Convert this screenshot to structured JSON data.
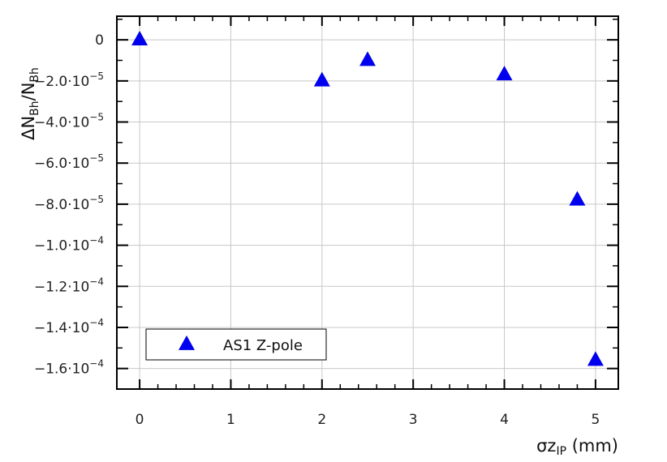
{
  "chart_data": {
    "type": "scatter",
    "xlabel": {
      "main": "σz",
      "sub": "IP",
      "suffix": " (mm)"
    },
    "ylabel": {
      "parts": [
        {
          "text": "ΔN",
          "sub": false
        },
        {
          "text": "Bh",
          "sub": true
        },
        {
          "text": "/N",
          "sub": false
        },
        {
          "text": "Bh",
          "sub": true
        }
      ]
    },
    "xlim": [
      -0.25,
      5.25
    ],
    "ylim": [
      -0.00017,
      1.15e-05
    ],
    "x_ticks": [
      {
        "value": 0,
        "label": "0"
      },
      {
        "value": 1,
        "label": "1"
      },
      {
        "value": 2,
        "label": "2"
      },
      {
        "value": 3,
        "label": "3"
      },
      {
        "value": 4,
        "label": "4"
      },
      {
        "value": 5,
        "label": "5"
      }
    ],
    "y_ticks": [
      {
        "value": 0,
        "mant": "0",
        "exp": ""
      },
      {
        "value": -2e-05,
        "mant": "−2.0·10",
        "exp": "−5"
      },
      {
        "value": -4e-05,
        "mant": "−4.0·10",
        "exp": "−5"
      },
      {
        "value": -6e-05,
        "mant": "−6.0·10",
        "exp": "−5"
      },
      {
        "value": -8e-05,
        "mant": "−8.0·10",
        "exp": "−5"
      },
      {
        "value": -0.0001,
        "mant": "−1.0·10",
        "exp": "−4"
      },
      {
        "value": -0.00012,
        "mant": "−1.2·10",
        "exp": "−4"
      },
      {
        "value": -0.00014,
        "mant": "−1.4·10",
        "exp": "−4"
      },
      {
        "value": -0.00016,
        "mant": "−1.6·10",
        "exp": "−4"
      }
    ],
    "grid": true,
    "legend_position": "bottom-left",
    "series": [
      {
        "name": "AS1 Z-pole",
        "marker": "triangle",
        "color": "#0000ee",
        "x": [
          0,
          2,
          2.5,
          4,
          4.8,
          5
        ],
        "y": [
          0,
          -2e-05,
          -1e-05,
          -1.7e-05,
          -7.8e-05,
          -0.000156
        ]
      }
    ]
  }
}
